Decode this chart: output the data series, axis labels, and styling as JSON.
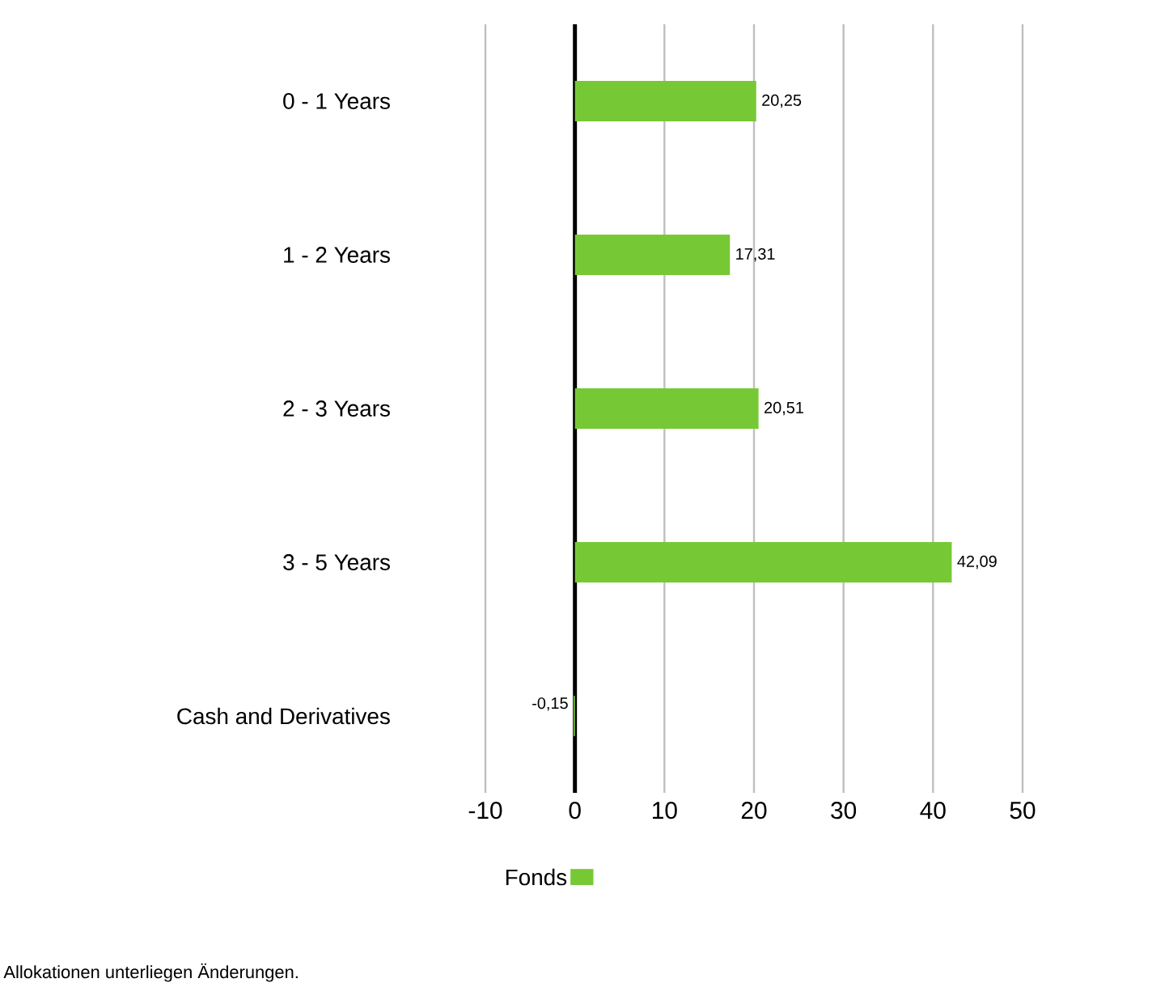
{
  "chart_data": {
    "type": "bar",
    "orientation": "horizontal",
    "categories": [
      "0 - 1 Years",
      "1 - 2 Years",
      "2 - 3 Years",
      "3 - 5 Years",
      "Cash and Derivatives"
    ],
    "series": [
      {
        "name": "Fonds",
        "color": "#76c935",
        "values": [
          20.25,
          17.31,
          20.51,
          42.09,
          -0.15
        ],
        "value_labels": [
          "20,25",
          "17,31",
          "20,51",
          "42,09",
          "-0,15"
        ]
      }
    ],
    "xlim": [
      -10,
      50
    ],
    "xticks": [
      -10,
      0,
      10,
      20,
      30,
      40,
      50
    ],
    "grid": "x",
    "legend": "bottom",
    "annotations": [
      "Allokationen unterliegen Änderungen."
    ]
  }
}
